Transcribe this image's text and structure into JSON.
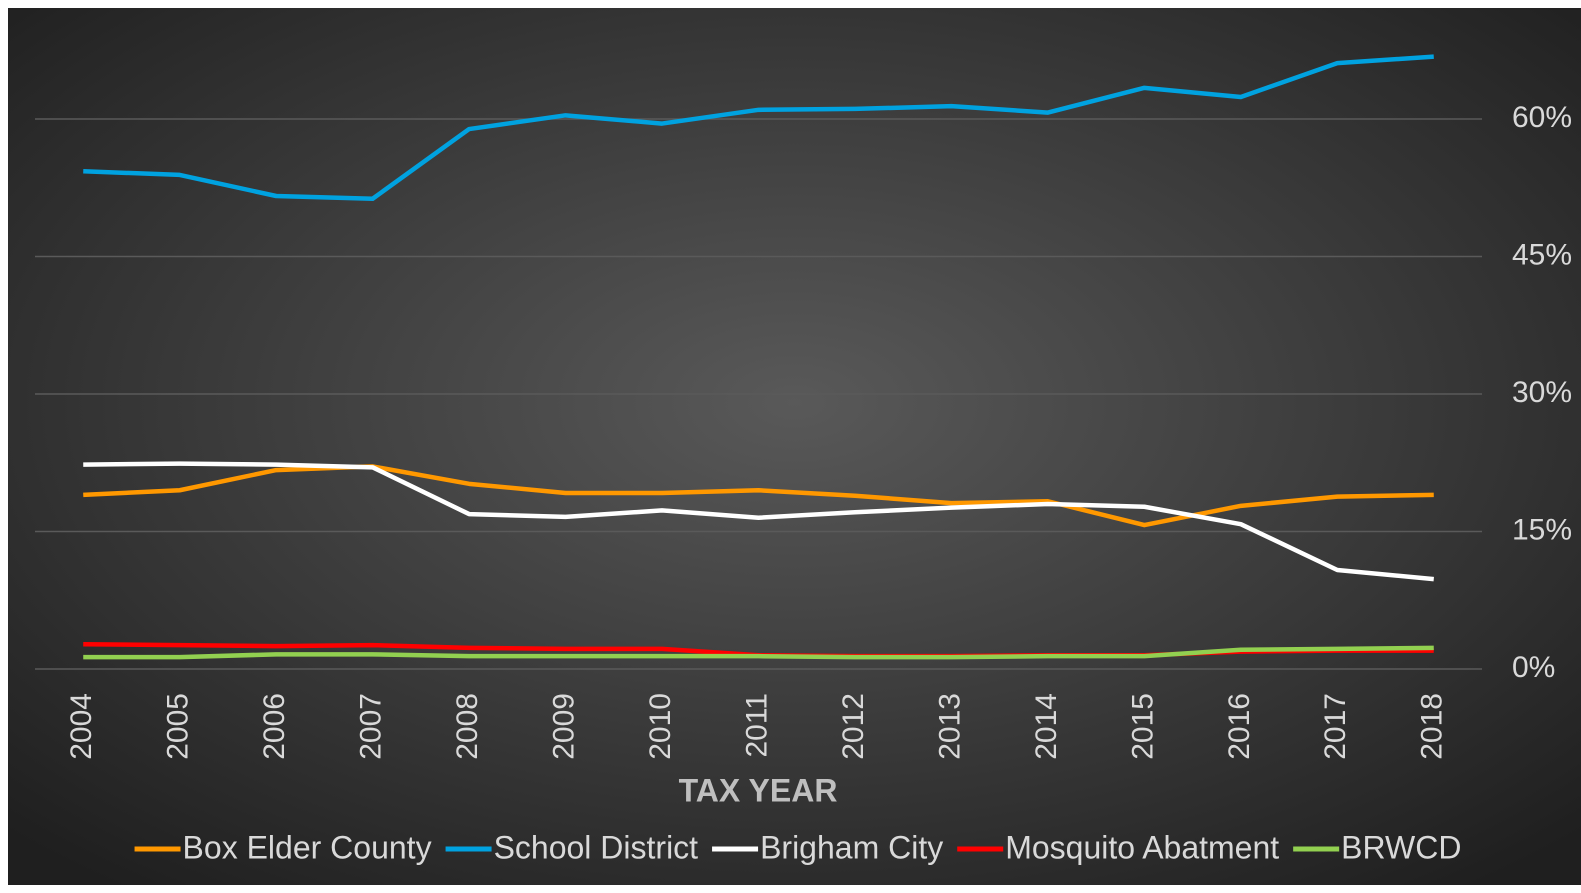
{
  "chart_data": {
    "type": "line",
    "xlabel": "TAX YEAR",
    "categories": [
      "2004",
      "2005",
      "2006",
      "2007",
      "2008",
      "2009",
      "2010",
      "2011",
      "2012",
      "2013",
      "2014",
      "2015",
      "2016",
      "2017",
      "2018"
    ],
    "series": [
      {
        "name": "Box Elder County",
        "color": "#ff9800",
        "values": [
          19.0,
          19.5,
          21.7,
          22.1,
          20.2,
          19.2,
          19.2,
          19.5,
          18.9,
          18.1,
          18.3,
          15.7,
          17.8,
          18.8,
          19.0
        ]
      },
      {
        "name": "School District",
        "color": "#00a2e0",
        "values": [
          54.3,
          53.9,
          51.6,
          51.3,
          58.9,
          60.4,
          59.5,
          61.0,
          61.1,
          61.4,
          60.7,
          63.4,
          62.4,
          66.1,
          66.8
        ]
      },
      {
        "name": "Brigham City",
        "color": "#ffffff",
        "values": [
          22.3,
          22.4,
          22.3,
          22.0,
          16.9,
          16.6,
          17.3,
          16.5,
          17.1,
          17.6,
          18.0,
          17.7,
          15.8,
          10.8,
          9.8
        ]
      },
      {
        "name": "Mosquito Abatment",
        "color": "#ff0000",
        "values": [
          2.7,
          2.6,
          2.5,
          2.6,
          2.3,
          2.2,
          2.2,
          1.5,
          1.4,
          1.4,
          1.5,
          1.5,
          1.9,
          2.0,
          2.0
        ]
      },
      {
        "name": "BRWCD",
        "color": "#92d050",
        "values": [
          1.3,
          1.3,
          1.6,
          1.6,
          1.4,
          1.4,
          1.4,
          1.4,
          1.3,
          1.3,
          1.4,
          1.4,
          2.1,
          2.2,
          2.3
        ]
      }
    ],
    "ylim": [
      0,
      70
    ],
    "yticks": [
      {
        "value": 0,
        "label": "0%"
      },
      {
        "value": 15,
        "label": "15%"
      },
      {
        "value": 30,
        "label": "30%"
      },
      {
        "value": 45,
        "label": "45%"
      },
      {
        "value": 60,
        "label": "60%"
      }
    ],
    "grid": true,
    "legend": "bottom"
  }
}
